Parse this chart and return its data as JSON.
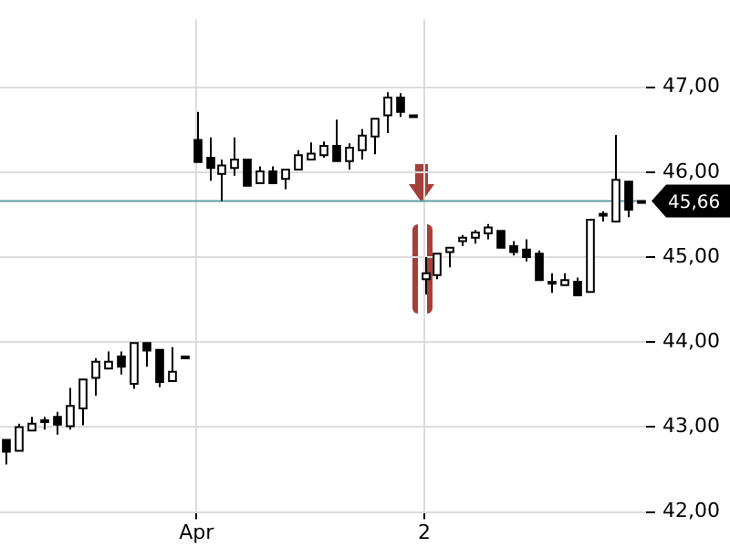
{
  "chart_data": {
    "type": "candlestick",
    "categories": [
      null,
      null,
      null,
      null,
      null,
      null,
      null,
      null,
      null,
      null,
      null,
      null,
      null,
      null,
      null,
      "Apr",
      null,
      null,
      null,
      null,
      null,
      null,
      null,
      null,
      null,
      null,
      null,
      null,
      null,
      null,
      null,
      null,
      null,
      "2",
      null,
      null,
      null,
      null,
      null,
      null,
      null,
      null,
      null,
      null,
      null,
      null,
      null,
      null,
      null,
      null,
      null
    ],
    "ohlc": [
      [
        42.85,
        42.85,
        42.56,
        42.71
      ],
      [
        42.72,
        43.04,
        42.72,
        43.0
      ],
      [
        42.96,
        43.12,
        42.96,
        43.04
      ],
      [
        43.08,
        43.12,
        42.97,
        43.06
      ],
      [
        43.12,
        43.18,
        42.91,
        43.03
      ],
      [
        43.01,
        43.46,
        42.97,
        43.25
      ],
      [
        43.22,
        43.56,
        43.02,
        43.56
      ],
      [
        43.58,
        43.81,
        43.37,
        43.77
      ],
      [
        43.69,
        43.89,
        43.68,
        43.77
      ],
      [
        43.83,
        43.89,
        43.62,
        43.71
      ],
      [
        43.51,
        43.99,
        43.45,
        43.99
      ],
      [
        43.99,
        43.99,
        43.71,
        43.9
      ],
      [
        43.91,
        43.91,
        43.47,
        43.53
      ],
      [
        43.54,
        43.94,
        43.54,
        43.65
      ],
      [
        43.83,
        43.83,
        43.83,
        43.83
      ],
      [
        46.38,
        46.71,
        46.12,
        46.12
      ],
      [
        46.17,
        46.41,
        45.9,
        46.05
      ],
      [
        45.98,
        46.15,
        45.66,
        46.08
      ],
      [
        46.05,
        46.41,
        45.96,
        46.15
      ],
      [
        46.15,
        46.15,
        45.84,
        45.84
      ],
      [
        45.87,
        46.07,
        45.87,
        46.01
      ],
      [
        46.01,
        46.07,
        45.87,
        45.87
      ],
      [
        45.92,
        46.03,
        45.8,
        46.03
      ],
      [
        46.03,
        46.26,
        46.03,
        46.2
      ],
      [
        46.15,
        46.35,
        46.15,
        46.22
      ],
      [
        46.2,
        46.36,
        46.17,
        46.31
      ],
      [
        46.31,
        46.62,
        46.13,
        46.13
      ],
      [
        46.13,
        46.34,
        46.03,
        46.29
      ],
      [
        46.26,
        46.51,
        46.15,
        46.43
      ],
      [
        46.42,
        46.63,
        46.21,
        46.63
      ],
      [
        46.67,
        46.94,
        46.46,
        46.88
      ],
      [
        46.88,
        46.93,
        46.65,
        46.71
      ],
      [
        46.67,
        46.67,
        46.67,
        46.67
      ],
      [
        44.74,
        45.0,
        44.56,
        44.81
      ],
      [
        44.79,
        45.04,
        44.74,
        45.04
      ],
      [
        45.06,
        45.11,
        44.88,
        45.11
      ],
      [
        45.19,
        45.26,
        45.13,
        45.23
      ],
      [
        45.23,
        45.32,
        45.16,
        45.29
      ],
      [
        45.28,
        45.39,
        45.21,
        45.35
      ],
      [
        45.31,
        45.31,
        45.11,
        45.11
      ],
      [
        45.13,
        45.19,
        45.02,
        45.06
      ],
      [
        45.09,
        45.21,
        44.95,
        45.0
      ],
      [
        45.04,
        45.08,
        44.73,
        44.73
      ],
      [
        44.71,
        44.81,
        44.58,
        44.71
      ],
      [
        44.67,
        44.81,
        44.66,
        44.73
      ],
      [
        44.71,
        44.76,
        44.55,
        44.55
      ],
      [
        44.59,
        45.44,
        44.59,
        45.44
      ],
      [
        45.51,
        45.54,
        45.42,
        45.51
      ],
      [
        45.42,
        46.44,
        45.42,
        45.91
      ],
      [
        45.89,
        45.89,
        45.47,
        45.56
      ],
      [
        45.66,
        45.66,
        45.66,
        45.66
      ]
    ],
    "ylim": [
      42,
      47.8
    ],
    "yticks": [
      {
        "value": 42,
        "label": "42,00"
      },
      {
        "value": 43,
        "label": "43,00"
      },
      {
        "value": 44,
        "label": "44,00"
      },
      {
        "value": 45,
        "label": "45,00"
      },
      {
        "value": 46,
        "label": "46,00"
      },
      {
        "value": 47,
        "label": "47,00"
      }
    ],
    "grid": true,
    "ref_lines": [
      {
        "axis": "y",
        "value": 45.66,
        "label": "45,66",
        "color": "#5f9ea0"
      }
    ]
  }
}
